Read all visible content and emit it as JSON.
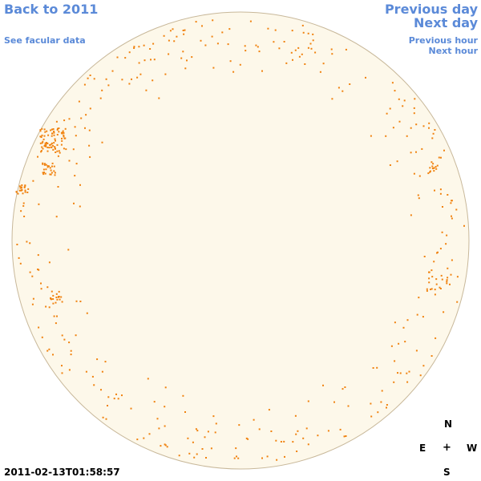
{
  "nav": {
    "back_to_year": "Back to 2011",
    "facular_data": "See facular data",
    "previous_day": "Previous day",
    "next_day": "Next day",
    "previous_hour": "Previous hour",
    "next_hour": "Next hour"
  },
  "timestamp": "2011-02-13T01:58:57",
  "compass": {
    "north": "N",
    "east": "E",
    "center": "+",
    "west": "W",
    "south": "S"
  },
  "colors": {
    "link": "#5b8ad8",
    "disk_fill": "#fdf8ea",
    "disk_border": "#c8b89a",
    "faculae": "#f0820f"
  }
}
